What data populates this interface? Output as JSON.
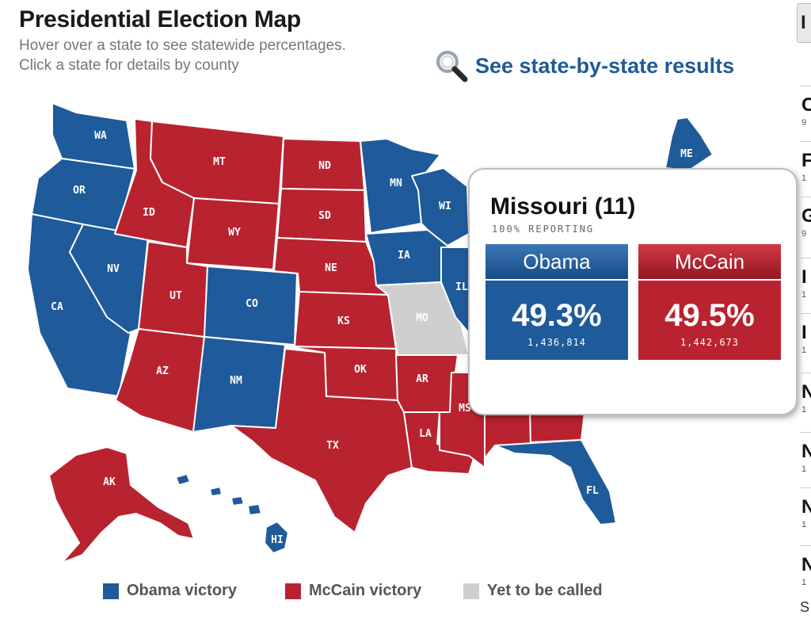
{
  "header": {
    "title": "Presidential Election Map",
    "subtitle_line1": "Hover over a state to see statewide percentages.",
    "subtitle_line2": "Click a state for details by county",
    "results_link": "See state-by-state results"
  },
  "colors": {
    "obama": "#1f5a9a",
    "mccain": "#b8232f",
    "uncalled": "#cfcfcf",
    "link": "#1f5a96"
  },
  "map": {
    "state_labels": {
      "WA": "WA",
      "OR": "OR",
      "CA": "CA",
      "NV": "NV",
      "ID": "ID",
      "MT": "MT",
      "WY": "WY",
      "UT": "UT",
      "CO": "CO",
      "AZ": "AZ",
      "NM": "NM",
      "ND": "ND",
      "SD": "SD",
      "NE": "NE",
      "KS": "KS",
      "OK": "OK",
      "TX": "TX",
      "MN": "MN",
      "IA": "IA",
      "MO": "MO",
      "AR": "AR",
      "LA": "LA",
      "WI": "WI",
      "IL": "IL",
      "MS": "MS",
      "FL": "FL",
      "ME": "ME",
      "AK": "AK",
      "HI": "HI"
    },
    "winners": {
      "WA": "obama",
      "OR": "obama",
      "CA": "obama",
      "NV": "obama",
      "CO": "obama",
      "NM": "obama",
      "MN": "obama",
      "IA": "obama",
      "WI": "obama",
      "IL": "obama",
      "MI": "obama",
      "FL": "obama",
      "ME": "obama",
      "HI": "obama",
      "ID": "mccain",
      "MT": "mccain",
      "WY": "mccain",
      "UT": "mccain",
      "AZ": "mccain",
      "ND": "mccain",
      "SD": "mccain",
      "NE": "mccain",
      "KS": "mccain",
      "OK": "mccain",
      "TX": "mccain",
      "AR": "mccain",
      "LA": "mccain",
      "MS": "mccain",
      "AL": "mccain",
      "GA": "mccain",
      "AK": "mccain",
      "MO": "uncalled"
    }
  },
  "popup": {
    "state_name": "Missouri (11)",
    "reporting": "100% REPORTING",
    "obama": {
      "name": "Obama",
      "pct": "49.3%",
      "votes": "1,436,814"
    },
    "mccain": {
      "name": "McCain",
      "pct": "49.5%",
      "votes": "1,442,673"
    }
  },
  "legend": {
    "obama": "Obama victory",
    "mccain": "McCain victory",
    "uncalled": "Yet to be called"
  },
  "sidebar": {
    "tab_letter": "I",
    "rows": [
      {
        "letter": "C",
        "sub": "9"
      },
      {
        "letter": "F",
        "sub": "1"
      },
      {
        "letter": "G",
        "sub": "9"
      },
      {
        "letter": "I",
        "sub": "1"
      },
      {
        "letter": "I",
        "sub": "1"
      },
      {
        "letter": "N",
        "sub": "1"
      },
      {
        "letter": "N",
        "sub": "1"
      },
      {
        "letter": "N",
        "sub": "1"
      },
      {
        "letter": "N",
        "sub": "1"
      }
    ],
    "footer_letter": "S"
  }
}
